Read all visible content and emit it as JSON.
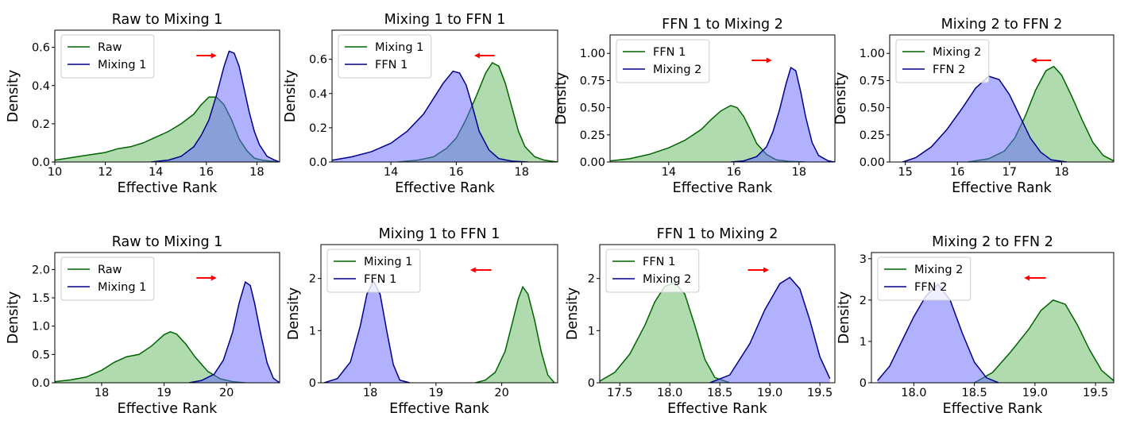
{
  "colors": {
    "green_line": "#006400",
    "green_fill": "#5fb85f",
    "blue_line": "#00008b",
    "blue_fill": "#6464ff",
    "arrow": "#ff0000"
  },
  "chart_data": [
    {
      "type": "area",
      "title": "Raw to Mixing 1",
      "xlabel": "Effective Rank",
      "ylabel": "Density",
      "xlim": [
        10,
        18.9
      ],
      "ylim": [
        0,
        0.69
      ],
      "xticks": [
        10,
        12,
        14,
        16,
        18
      ],
      "yticks": [
        0.0,
        0.2,
        0.4,
        0.6
      ],
      "xtick_labels": [
        "10",
        "12",
        "14",
        "16",
        "18"
      ],
      "ytick_labels": [
        "0.0",
        "0.2",
        "0.4",
        "0.6"
      ],
      "legend": "top-left",
      "arrow_direction": "right",
      "series": [
        {
          "name": "Raw",
          "color": "green",
          "x": [
            10,
            10.5,
            11,
            11.5,
            12,
            12.5,
            13,
            13.5,
            14,
            14.5,
            15,
            15.5,
            15.8,
            16.1,
            16.4,
            16.7,
            17,
            17.3,
            17.6,
            17.9,
            18.2,
            18.5,
            18.9
          ],
          "y": [
            0.01,
            0.02,
            0.03,
            0.04,
            0.05,
            0.07,
            0.08,
            0.1,
            0.13,
            0.16,
            0.2,
            0.25,
            0.3,
            0.34,
            0.34,
            0.3,
            0.22,
            0.12,
            0.06,
            0.02,
            0.01,
            0.005,
            0.0
          ]
        },
        {
          "name": "Mixing 1",
          "color": "blue",
          "x": [
            13.8,
            14.5,
            15,
            15.5,
            15.8,
            16.1,
            16.4,
            16.7,
            16.9,
            17.1,
            17.3,
            17.5,
            17.7,
            17.9,
            18.1,
            18.4,
            18.7,
            18.9
          ],
          "y": [
            0.0,
            0.01,
            0.03,
            0.08,
            0.14,
            0.22,
            0.35,
            0.5,
            0.58,
            0.57,
            0.5,
            0.38,
            0.26,
            0.16,
            0.09,
            0.03,
            0.01,
            0.0
          ]
        }
      ]
    },
    {
      "type": "area",
      "title": "Mixing 1 to FFN 1",
      "xlabel": "Effective Rank",
      "ylabel": "Density",
      "xlim": [
        12.2,
        19.1
      ],
      "ylim": [
        0,
        0.77
      ],
      "xticks": [
        14,
        16,
        18
      ],
      "yticks": [
        0.0,
        0.2,
        0.4,
        0.6
      ],
      "xtick_labels": [
        "14",
        "16",
        "18"
      ],
      "ytick_labels": [
        "0.0",
        "0.2",
        "0.4",
        "0.6"
      ],
      "legend": "top-left",
      "arrow_direction": "left",
      "series": [
        {
          "name": "Mixing 1",
          "color": "green",
          "x": [
            14.2,
            14.8,
            15.3,
            15.7,
            16,
            16.3,
            16.6,
            16.9,
            17.1,
            17.3,
            17.5,
            17.7,
            17.9,
            18.1,
            18.4,
            18.7,
            19.1
          ],
          "y": [
            0.0,
            0.01,
            0.03,
            0.08,
            0.14,
            0.25,
            0.38,
            0.52,
            0.58,
            0.56,
            0.46,
            0.32,
            0.18,
            0.09,
            0.03,
            0.01,
            0.0
          ]
        },
        {
          "name": "FFN 1",
          "color": "blue",
          "x": [
            12.2,
            12.8,
            13.4,
            14,
            14.5,
            15,
            15.3,
            15.6,
            15.9,
            16.1,
            16.3,
            16.5,
            16.7,
            17,
            17.3,
            17.7,
            18.2
          ],
          "y": [
            0.01,
            0.03,
            0.06,
            0.11,
            0.18,
            0.28,
            0.37,
            0.46,
            0.53,
            0.52,
            0.45,
            0.32,
            0.18,
            0.07,
            0.02,
            0.005,
            0.0
          ]
        }
      ]
    },
    {
      "type": "area",
      "title": "FFN 1 to Mixing 2",
      "xlabel": "Effective Rank",
      "ylabel": "Density",
      "xlim": [
        12.2,
        19.1
      ],
      "ylim": [
        0,
        1.17
      ],
      "xticks": [
        14,
        16,
        18
      ],
      "yticks": [
        0.0,
        0.25,
        0.5,
        0.75,
        1.0
      ],
      "xtick_labels": [
        "14",
        "16",
        "18"
      ],
      "ytick_labels": [
        "0.00",
        "0.25",
        "0.50",
        "0.75",
        "1.00"
      ],
      "legend": "top-left",
      "arrow_direction": "right",
      "series": [
        {
          "name": "FFN 1",
          "color": "green",
          "x": [
            12.2,
            12.8,
            13.4,
            14,
            14.5,
            15,
            15.3,
            15.6,
            15.9,
            16.1,
            16.3,
            16.5,
            16.7,
            17,
            17.3,
            17.7,
            18.2
          ],
          "y": [
            0.01,
            0.03,
            0.07,
            0.13,
            0.2,
            0.3,
            0.39,
            0.47,
            0.52,
            0.5,
            0.42,
            0.3,
            0.17,
            0.07,
            0.02,
            0.005,
            0.0
          ]
        },
        {
          "name": "Mixing 2",
          "color": "blue",
          "x": [
            15.9,
            16.3,
            16.7,
            17,
            17.2,
            17.4,
            17.6,
            17.75,
            17.9,
            18.05,
            18.2,
            18.4,
            18.6,
            18.9,
            19.1
          ],
          "y": [
            0.0,
            0.01,
            0.05,
            0.14,
            0.28,
            0.48,
            0.72,
            0.87,
            0.84,
            0.65,
            0.42,
            0.18,
            0.06,
            0.01,
            0.0
          ]
        }
      ]
    },
    {
      "type": "area",
      "title": "Mixing 2 to FFN 2",
      "xlabel": "Effective Rank",
      "ylabel": "Density",
      "xlim": [
        14.7,
        19.0
      ],
      "ylim": [
        0,
        1.17
      ],
      "xticks": [
        15,
        16,
        17,
        18
      ],
      "yticks": [
        0.0,
        0.25,
        0.5,
        0.75,
        1.0
      ],
      "xtick_labels": [
        "15",
        "16",
        "17",
        "18"
      ],
      "ytick_labels": [
        "0.00",
        "0.25",
        "0.50",
        "0.75",
        "1.00"
      ],
      "legend": "top-left",
      "arrow_direction": "left",
      "series": [
        {
          "name": "Mixing 2",
          "color": "green",
          "x": [
            16.2,
            16.6,
            16.9,
            17.1,
            17.3,
            17.5,
            17.7,
            17.85,
            18,
            18.2,
            18.4,
            18.6,
            18.8,
            19.0
          ],
          "y": [
            0.0,
            0.03,
            0.1,
            0.22,
            0.42,
            0.66,
            0.84,
            0.88,
            0.8,
            0.6,
            0.38,
            0.18,
            0.06,
            0.01
          ]
        },
        {
          "name": "FFN 2",
          "color": "blue",
          "x": [
            14.95,
            15.2,
            15.5,
            15.8,
            16.1,
            16.35,
            16.6,
            16.8,
            17,
            17.2,
            17.4,
            17.6,
            17.8,
            18.1
          ],
          "y": [
            0.0,
            0.04,
            0.14,
            0.3,
            0.5,
            0.68,
            0.79,
            0.76,
            0.62,
            0.42,
            0.22,
            0.09,
            0.02,
            0.0
          ]
        }
      ]
    },
    {
      "type": "area",
      "title": "Raw to Mixing 1",
      "xlabel": "Effective Rank",
      "ylabel": "Density",
      "xlim": [
        17.25,
        20.85
      ],
      "ylim": [
        0,
        2.3
      ],
      "xticks": [
        18,
        19,
        20
      ],
      "yticks": [
        0.0,
        0.5,
        1.0,
        1.5,
        2.0
      ],
      "xtick_labels": [
        "18",
        "19",
        "20"
      ],
      "ytick_labels": [
        "0.0",
        "0.5",
        "1.0",
        "1.5",
        "2.0"
      ],
      "legend": "top-left",
      "arrow_direction": "right",
      "series": [
        {
          "name": "Raw",
          "color": "green",
          "x": [
            17.25,
            17.5,
            17.75,
            18,
            18.2,
            18.4,
            18.6,
            18.8,
            19,
            19.1,
            19.2,
            19.35,
            19.5,
            19.7,
            19.9,
            20.1,
            20.3
          ],
          "y": [
            0.02,
            0.05,
            0.1,
            0.22,
            0.36,
            0.46,
            0.5,
            0.65,
            0.85,
            0.9,
            0.86,
            0.68,
            0.45,
            0.2,
            0.07,
            0.02,
            0.0
          ]
        },
        {
          "name": "Mixing 1",
          "color": "blue",
          "x": [
            19.4,
            19.6,
            19.8,
            19.95,
            20.1,
            20.2,
            20.3,
            20.38,
            20.45,
            20.55,
            20.65,
            20.75,
            20.85
          ],
          "y": [
            0.0,
            0.04,
            0.15,
            0.4,
            0.9,
            1.4,
            1.78,
            1.72,
            1.4,
            0.85,
            0.35,
            0.08,
            0.0
          ]
        }
      ]
    },
    {
      "type": "area",
      "title": "Mixing 1 to FFN 1",
      "xlabel": "Effective Rank",
      "ylabel": "Density",
      "xlim": [
        17.25,
        20.85
      ],
      "ylim": [
        0,
        2.65
      ],
      "xticks": [
        18,
        19,
        20
      ],
      "yticks": [
        0,
        1,
        2
      ],
      "xtick_labels": [
        "18",
        "19",
        "20"
      ],
      "ytick_labels": [
        "0",
        "1",
        "2"
      ],
      "legend": "top-left",
      "arrow_direction": "left",
      "series": [
        {
          "name": "Mixing 1",
          "color": "green",
          "x": [
            19.6,
            19.75,
            19.9,
            20.05,
            20.15,
            20.25,
            20.32,
            20.4,
            20.5,
            20.6,
            20.7,
            20.8
          ],
          "y": [
            0.0,
            0.05,
            0.2,
            0.6,
            1.1,
            1.6,
            1.84,
            1.7,
            1.2,
            0.6,
            0.15,
            0.0
          ]
        },
        {
          "name": "FFN 1",
          "color": "blue",
          "x": [
            17.3,
            17.5,
            17.7,
            17.85,
            17.95,
            18.05,
            18.15,
            18.25,
            18.35,
            18.45,
            18.6
          ],
          "y": [
            0.0,
            0.08,
            0.4,
            1.1,
            1.7,
            1.95,
            1.7,
            1.0,
            0.35,
            0.05,
            0.0
          ]
        }
      ]
    },
    {
      "type": "area",
      "title": "FFN 1 to Mixing 2",
      "xlabel": "Effective Rank",
      "ylabel": "Density",
      "xlim": [
        17.3,
        19.65
      ],
      "ylim": [
        0,
        2.65
      ],
      "xticks": [
        17.5,
        18.0,
        18.5,
        19.0,
        19.5
      ],
      "yticks": [
        0,
        1,
        2
      ],
      "xtick_labels": [
        "17.5",
        "18.0",
        "18.5",
        "19.0",
        "19.5"
      ],
      "ytick_labels": [
        "0",
        "1",
        "2"
      ],
      "legend": "top-left",
      "arrow_direction": "right",
      "series": [
        {
          "name": "FFN 1",
          "color": "green",
          "x": [
            17.3,
            17.45,
            17.6,
            17.75,
            17.85,
            17.95,
            18.05,
            18.15,
            18.25,
            18.35,
            18.45,
            18.6
          ],
          "y": [
            0.03,
            0.2,
            0.55,
            1.1,
            1.55,
            1.85,
            1.92,
            1.7,
            1.1,
            0.45,
            0.1,
            0.0
          ]
        },
        {
          "name": "Mixing 2",
          "color": "blue",
          "x": [
            18.4,
            18.6,
            18.8,
            18.95,
            19.1,
            19.2,
            19.3,
            19.4,
            19.5,
            19.6
          ],
          "y": [
            0.0,
            0.15,
            0.75,
            1.4,
            1.9,
            2.02,
            1.8,
            1.2,
            0.5,
            0.08
          ]
        }
      ]
    },
    {
      "type": "area",
      "title": "Mixing 2 to FFN 2",
      "xlabel": "Effective Rank",
      "ylabel": "Density",
      "xlim": [
        17.65,
        19.65
      ],
      "ylim": [
        0,
        3.15
      ],
      "xticks": [
        18.0,
        18.5,
        19.0,
        19.5
      ],
      "yticks": [
        0,
        1,
        2,
        3
      ],
      "xtick_labels": [
        "18.0",
        "18.5",
        "19.0",
        "19.5"
      ],
      "ytick_labels": [
        "0",
        "1",
        "2",
        "3"
      ],
      "legend": "top-left",
      "arrow_direction": "left",
      "series": [
        {
          "name": "Mixing 2",
          "color": "green",
          "x": [
            18.5,
            18.65,
            18.8,
            18.95,
            19.05,
            19.15,
            19.25,
            19.35,
            19.45,
            19.55,
            19.65
          ],
          "y": [
            0.0,
            0.25,
            0.75,
            1.3,
            1.75,
            2.0,
            1.9,
            1.4,
            0.8,
            0.3,
            0.05
          ]
        },
        {
          "name": "FFN 2",
          "color": "blue",
          "x": [
            17.7,
            17.8,
            17.9,
            18.0,
            18.1,
            18.2,
            18.3,
            18.4,
            18.5,
            18.6,
            18.7
          ],
          "y": [
            0.05,
            0.4,
            1.0,
            1.6,
            2.1,
            2.38,
            2.0,
            1.2,
            0.5,
            0.12,
            0.0
          ]
        }
      ]
    }
  ]
}
